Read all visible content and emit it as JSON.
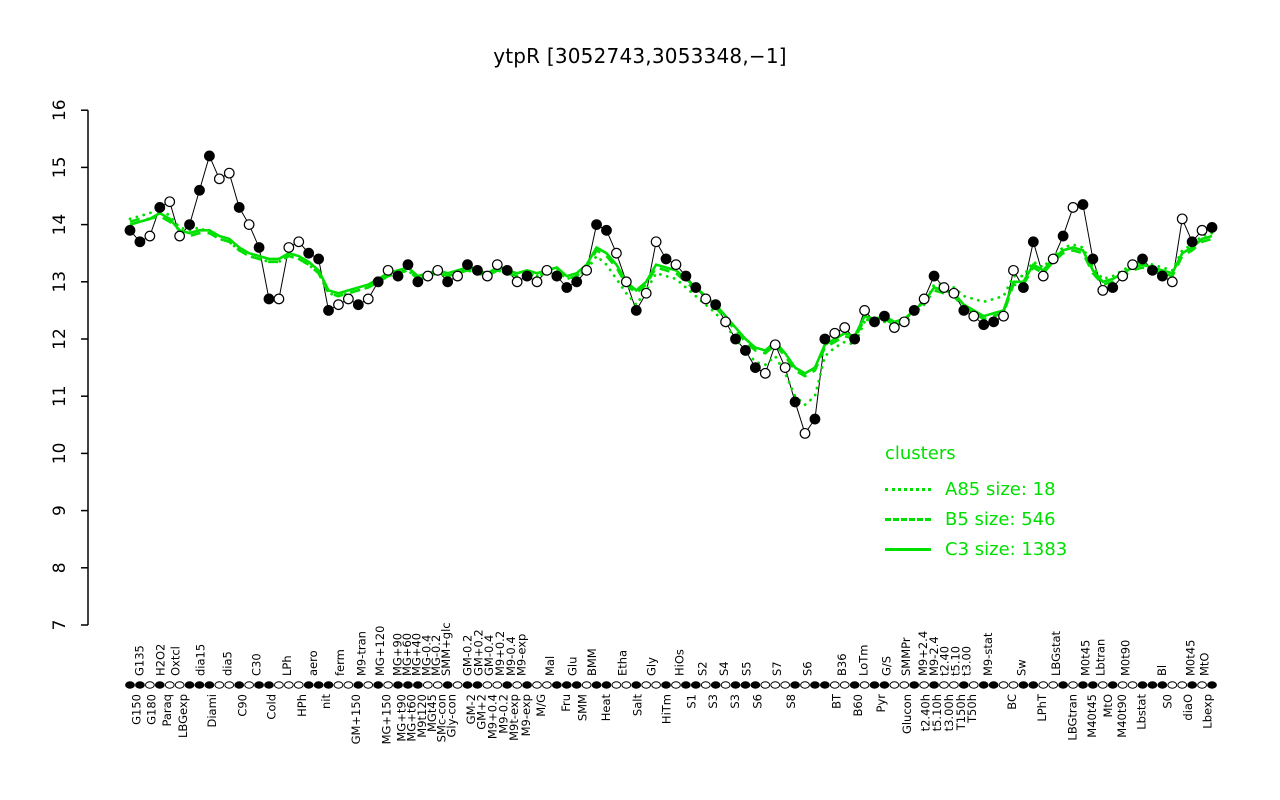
{
  "title": "ytpR [3052743,3053348,−1]",
  "legend": {
    "title": "clusters",
    "entries": [
      {
        "label": "A85 size: 18",
        "style": "dotted"
      },
      {
        "label": "B5 size: 546",
        "style": "dashed"
      },
      {
        "label": "C3 size: 1383",
        "style": "solid"
      }
    ]
  },
  "colors": {
    "cluster": "#00e000",
    "points": "#000000",
    "background": "#ffffff"
  },
  "chart_data": {
    "type": "line",
    "title": "ytpR [3052743,3053348,−1]",
    "ylim": [
      7,
      16
    ],
    "yticks": [
      "7",
      "8",
      "9",
      "10",
      "11",
      "12",
      "13",
      "14",
      "15",
      "16"
    ],
    "grid": false,
    "legend_position": "right-center",
    "series": [
      {
        "name": "expression",
        "marker": "circle",
        "color": "#000000",
        "style": "solid-thin",
        "values": [
          13.9,
          13.7,
          13.8,
          14.3,
          14.4,
          13.8,
          14.0,
          14.6,
          15.2,
          14.8,
          14.9,
          14.3,
          14.0,
          13.6,
          12.7,
          12.7,
          13.6,
          13.7,
          13.5,
          13.4,
          12.5,
          12.6,
          12.7,
          12.6,
          12.7,
          13.0,
          13.2,
          13.1,
          13.3,
          13.0,
          13.1,
          13.2,
          13.0,
          13.1,
          13.3,
          13.2,
          13.1,
          13.3,
          13.2,
          13.0,
          13.1,
          13.0,
          13.2,
          13.1,
          12.9,
          13.0,
          13.2,
          14.0,
          13.9,
          13.5,
          13.0,
          12.5,
          12.8,
          13.7,
          13.4,
          13.3,
          13.1,
          12.9,
          12.7,
          12.6,
          12.3,
          12.0,
          11.8,
          11.5,
          11.4,
          11.9,
          11.5,
          10.9,
          10.35,
          10.6,
          12.0,
          12.1,
          12.2,
          12.0,
          12.5,
          12.3,
          12.4,
          12.2,
          12.3,
          12.5,
          12.7,
          13.1,
          12.9,
          12.8,
          12.5,
          12.4,
          12.25,
          12.3,
          12.4,
          13.2,
          12.9,
          13.7,
          13.1,
          13.4,
          13.8,
          14.3,
          14.35,
          13.4,
          12.85,
          12.9,
          13.1,
          13.3,
          13.4,
          13.2,
          13.1,
          13.0,
          14.1,
          13.7,
          13.9,
          13.95
        ]
      },
      {
        "name": "A85",
        "style": "dotted",
        "color": "#00e000",
        "values": [
          14.1,
          14.15,
          14.2,
          14.3,
          14.15,
          13.95,
          13.9,
          13.95,
          13.85,
          13.75,
          13.7,
          13.55,
          13.45,
          13.4,
          13.35,
          13.35,
          13.45,
          13.4,
          13.3,
          13.15,
          12.8,
          12.75,
          12.8,
          12.85,
          12.9,
          13.0,
          13.1,
          13.15,
          13.2,
          13.05,
          13.1,
          13.15,
          13.1,
          13.15,
          13.2,
          13.15,
          13.1,
          13.2,
          13.15,
          13.1,
          13.15,
          13.1,
          13.15,
          13.2,
          13.05,
          13.1,
          13.2,
          13.45,
          13.3,
          13.05,
          12.8,
          12.6,
          12.85,
          13.15,
          13.1,
          13.05,
          12.9,
          12.75,
          12.6,
          12.45,
          12.25,
          12.0,
          11.8,
          11.6,
          11.55,
          11.7,
          11.4,
          11.0,
          10.85,
          11.0,
          11.7,
          11.85,
          11.95,
          11.9,
          12.3,
          12.25,
          12.3,
          12.2,
          12.25,
          12.45,
          12.6,
          12.95,
          12.95,
          12.9,
          12.75,
          12.7,
          12.65,
          12.7,
          12.75,
          13.1,
          13.1,
          13.35,
          13.25,
          13.45,
          13.6,
          13.65,
          13.6,
          13.25,
          13.05,
          13.1,
          13.2,
          13.3,
          13.35,
          13.3,
          13.25,
          13.2,
          13.55,
          13.65,
          13.8,
          13.85
        ]
      },
      {
        "name": "B5",
        "style": "dashed",
        "color": "#00e000",
        "values": [
          14.05,
          14.1,
          14.1,
          14.15,
          14.05,
          13.9,
          13.8,
          13.85,
          13.85,
          13.75,
          13.7,
          13.55,
          13.45,
          13.4,
          13.35,
          13.35,
          13.45,
          13.4,
          13.3,
          13.15,
          12.8,
          12.75,
          12.8,
          12.85,
          12.9,
          13.0,
          13.1,
          13.15,
          13.2,
          13.05,
          13.1,
          13.15,
          13.1,
          13.15,
          13.2,
          13.15,
          13.1,
          13.2,
          13.15,
          13.1,
          13.15,
          13.1,
          13.15,
          13.2,
          13.05,
          13.1,
          13.25,
          13.55,
          13.45,
          13.25,
          12.95,
          12.8,
          12.95,
          13.25,
          13.2,
          13.15,
          13.0,
          12.85,
          12.7,
          12.55,
          12.35,
          12.15,
          11.95,
          11.8,
          11.75,
          11.9,
          11.7,
          11.45,
          11.35,
          11.45,
          11.85,
          11.95,
          12.05,
          12.0,
          12.35,
          12.3,
          12.35,
          12.25,
          12.3,
          12.45,
          12.6,
          12.85,
          12.8,
          12.75,
          12.55,
          12.45,
          12.35,
          12.4,
          12.45,
          12.95,
          12.95,
          13.25,
          13.15,
          13.35,
          13.5,
          13.55,
          13.5,
          13.15,
          12.95,
          13.0,
          13.1,
          13.2,
          13.25,
          13.2,
          13.15,
          13.1,
          13.45,
          13.55,
          13.7,
          13.75
        ]
      },
      {
        "name": "C3",
        "style": "solid",
        "color": "#00e000",
        "values": [
          14.0,
          14.05,
          14.1,
          14.2,
          14.1,
          13.9,
          13.85,
          13.9,
          13.9,
          13.8,
          13.75,
          13.6,
          13.5,
          13.45,
          13.4,
          13.4,
          13.5,
          13.45,
          13.35,
          13.2,
          12.85,
          12.8,
          12.85,
          12.9,
          12.95,
          13.05,
          13.15,
          13.2,
          13.25,
          13.1,
          13.15,
          13.2,
          13.15,
          13.2,
          13.25,
          13.2,
          13.15,
          13.25,
          13.2,
          13.15,
          13.2,
          13.15,
          13.2,
          13.25,
          13.1,
          13.15,
          13.3,
          13.6,
          13.5,
          13.3,
          13.0,
          12.85,
          13.0,
          13.3,
          13.25,
          13.2,
          13.05,
          12.9,
          12.75,
          12.6,
          12.4,
          12.2,
          12.0,
          11.85,
          11.8,
          11.95,
          11.75,
          11.5,
          11.4,
          11.5,
          11.9,
          12.0,
          12.1,
          12.05,
          12.4,
          12.35,
          12.4,
          12.3,
          12.35,
          12.5,
          12.65,
          12.9,
          12.85,
          12.8,
          12.6,
          12.5,
          12.4,
          12.45,
          12.5,
          13.0,
          13.0,
          13.3,
          13.2,
          13.4,
          13.55,
          13.6,
          13.55,
          13.2,
          13.0,
          13.05,
          13.15,
          13.25,
          13.3,
          13.25,
          13.2,
          13.15,
          13.5,
          13.6,
          13.75,
          13.8
        ]
      }
    ],
    "marker_fill_pattern": "ffofoofffoofoffooofffoofofofffoofoffoofofoofffoffoofoofoffofofffooofoffoofoffoofofoofoffooffoofoffofoofffoofof",
    "x_axis_labels": {
      "upper": [
        [
          "G135",
          0.009
        ],
        [
          "H2O2",
          0.028
        ],
        [
          "Oxtcl",
          0.042
        ],
        [
          "dia15",
          0.065
        ],
        [
          "dia5",
          0.09
        ],
        [
          "C30",
          0.117
        ],
        [
          "LPh",
          0.145
        ],
        [
          "aero",
          0.169
        ],
        [
          "ferm",
          0.194
        ],
        [
          "M9-tran",
          0.214
        ],
        [
          "MG+120",
          0.231
        ],
        [
          "MG+90",
          0.247
        ],
        [
          "MG+60",
          0.256
        ],
        [
          "MG+40",
          0.265
        ],
        [
          "MG-0.4",
          0.274
        ],
        [
          "MG-0.2",
          0.283
        ],
        [
          "SMM+glc",
          0.292
        ],
        [
          "GM-0.2",
          0.312
        ],
        [
          "GM+0.2",
          0.322
        ],
        [
          "GM-0.4",
          0.332
        ],
        [
          "M9+0.2",
          0.342
        ],
        [
          "M9-0.4",
          0.352
        ],
        [
          "M9-exp",
          0.362
        ],
        [
          "Mal",
          0.388
        ],
        [
          "Glu",
          0.409
        ],
        [
          "BMM",
          0.427
        ],
        [
          "Etha",
          0.455
        ],
        [
          "Gly",
          0.482
        ],
        [
          "HiOs",
          0.508
        ],
        [
          "S2",
          0.529
        ],
        [
          "S4",
          0.549
        ],
        [
          "S5",
          0.57
        ],
        [
          "S7",
          0.598
        ],
        [
          "S6",
          0.626
        ],
        [
          "B36",
          0.658
        ],
        [
          "LoTm",
          0.678
        ],
        [
          "G/S",
          0.699
        ],
        [
          "SMMPr",
          0.717
        ],
        [
          "M9+2.4",
          0.733
        ],
        [
          "M9-2.4",
          0.743
        ],
        [
          "t2.40",
          0.753
        ],
        [
          "t5.10",
          0.763
        ],
        [
          "t3.00",
          0.773
        ],
        [
          "M9-stat",
          0.793
        ],
        [
          "Sw",
          0.824
        ],
        [
          "LBGstat",
          0.856
        ],
        [
          "M0t45",
          0.883
        ],
        [
          "Lbtran",
          0.897
        ],
        [
          "M0t90",
          0.92
        ],
        [
          "Bl",
          0.954
        ],
        [
          "M0t45",
          0.98
        ],
        [
          "MtO",
          0.993
        ]
      ],
      "lower": [
        [
          "G150",
          0.006
        ],
        [
          "G180",
          0.02
        ],
        [
          "Paraq",
          0.034
        ],
        [
          "LBGexp",
          0.049
        ],
        [
          "Diami",
          0.076
        ],
        [
          "C90",
          0.104
        ],
        [
          "Cold",
          0.131
        ],
        [
          "HPh",
          0.159
        ],
        [
          "nit",
          0.181
        ],
        [
          "GM+150",
          0.209
        ],
        [
          "MG+150",
          0.237
        ],
        [
          "MG+t90",
          0.251
        ],
        [
          "MG+t60",
          0.26
        ],
        [
          "M9t120",
          0.27
        ],
        [
          "MGt45",
          0.279
        ],
        [
          "SMc-con",
          0.288
        ],
        [
          "Gly-con",
          0.297
        ],
        [
          "GM-2",
          0.315
        ],
        [
          "GM+2",
          0.325
        ],
        [
          "M9+0.4",
          0.335
        ],
        [
          "M9-0.2",
          0.345
        ],
        [
          "M9t-exp",
          0.355
        ],
        [
          "M9-exp",
          0.366
        ],
        [
          "M/G",
          0.38
        ],
        [
          "Fru",
          0.403
        ],
        [
          "SMM",
          0.418
        ],
        [
          "Heat",
          0.44
        ],
        [
          "Salt",
          0.469
        ],
        [
          "HiTm",
          0.496
        ],
        [
          "S1",
          0.519
        ],
        [
          "S3",
          0.539
        ],
        [
          "S3",
          0.559
        ],
        [
          "S6",
          0.58
        ],
        [
          "S8",
          0.611
        ],
        [
          "BT",
          0.653
        ],
        [
          "B60",
          0.673
        ],
        [
          "Pyr",
          0.694
        ],
        [
          "Glucon",
          0.718
        ],
        [
          "t2.40h",
          0.735
        ],
        [
          "t5.10h",
          0.746
        ],
        [
          "t3.00h",
          0.757
        ],
        [
          "T150h",
          0.768
        ],
        [
          "T50h",
          0.778
        ],
        [
          "BC",
          0.815
        ],
        [
          "LPhT",
          0.843
        ],
        [
          "LBGtran",
          0.871
        ],
        [
          "M40t45",
          0.889
        ],
        [
          "MtO",
          0.904
        ],
        [
          "M40t90",
          0.917
        ],
        [
          "Lbstat",
          0.935
        ],
        [
          "S0",
          0.959
        ],
        [
          "diaO",
          0.978
        ],
        [
          "Lbexp",
          0.996
        ]
      ]
    }
  }
}
